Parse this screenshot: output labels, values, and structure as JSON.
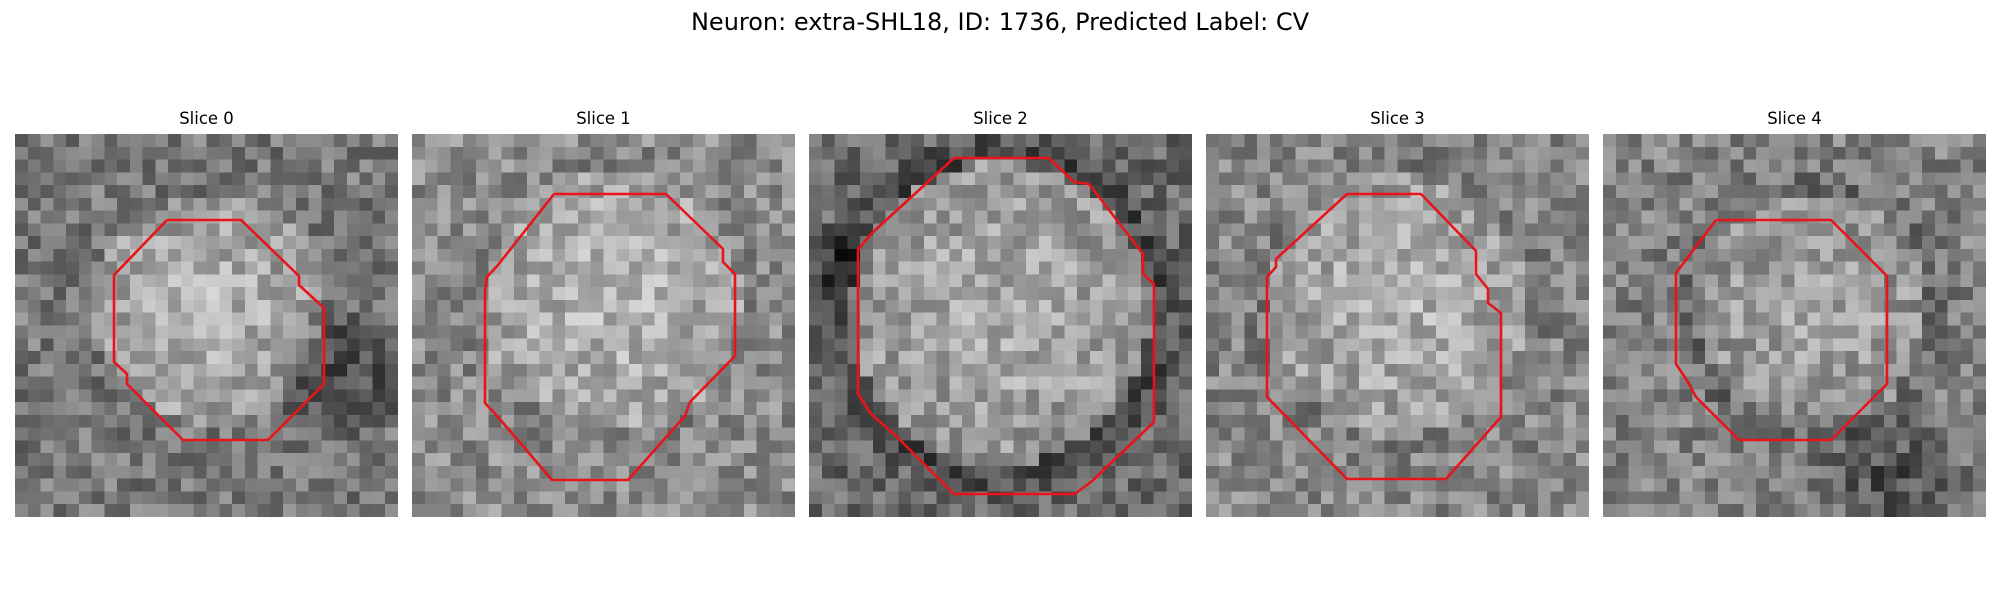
{
  "figure": {
    "title": "Neuron: extra-SHL18, ID: 1736, Predicted Label: CV",
    "outline_color": "#e8141a"
  },
  "slices": [
    {
      "label": "Slice 0"
    },
    {
      "label": "Slice 1"
    },
    {
      "label": "Slice 2"
    },
    {
      "label": "Slice 3"
    },
    {
      "label": "Slice 4"
    }
  ]
}
